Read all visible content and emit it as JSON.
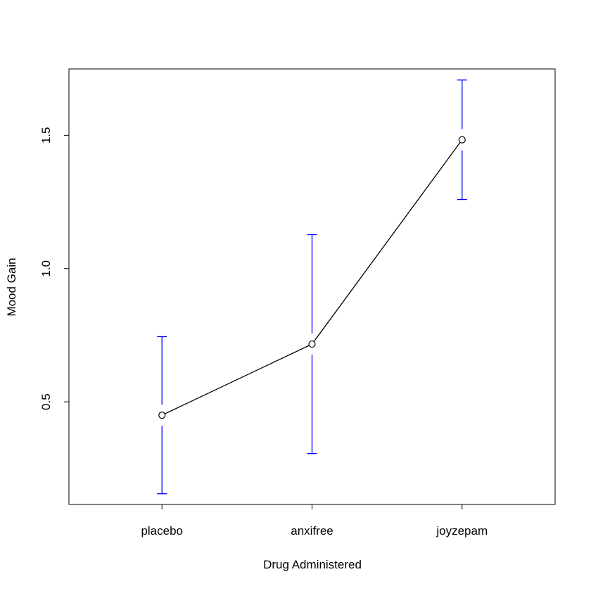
{
  "chart_data": {
    "type": "line",
    "title": "",
    "xlabel": "Drug Administered",
    "ylabel": "Mood Gain",
    "categories": [
      "placebo",
      "anxifree",
      "joyzepam"
    ],
    "series": [
      {
        "values": [
          0.45,
          0.7167,
          1.4833
        ],
        "error_low": [
          0.1553,
          0.306,
          1.2592
        ],
        "error_high": [
          0.7447,
          1.1273,
          1.7075
        ],
        "line_color": "#000000",
        "marker": "open-circle",
        "error_color": "#0000ff"
      }
    ],
    "yticks": [
      0.5,
      1.0,
      1.5
    ],
    "ytick_labels": [
      "0.5",
      "1.0",
      "1.5"
    ],
    "ylim": [
      0.115,
      1.749
    ],
    "xlim": [
      0.38,
      3.62
    ],
    "grid": false,
    "legend": "none"
  }
}
